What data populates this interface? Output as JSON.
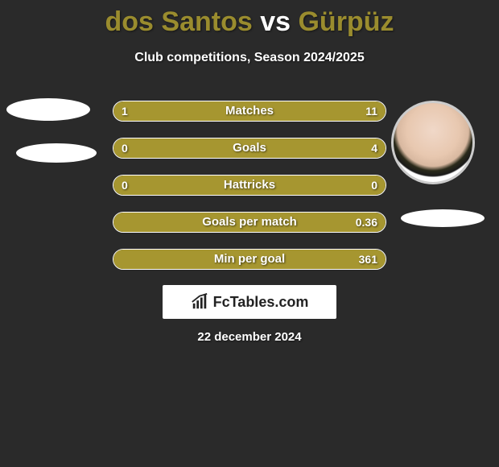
{
  "header": {
    "title_player1": "dos Santos",
    "title_vs": " vs ",
    "title_player2": "Gürpüz",
    "title_color_p1": "#9a8c2e",
    "title_color_vs": "#ffffff",
    "title_color_p2": "#9a8c2e",
    "subtitle": "Club competitions, Season 2024/2025"
  },
  "colors": {
    "player1": "#a69630",
    "player2": "#a69630",
    "background": "#2a2a2a",
    "border": "#ffffff",
    "text": "#ffffff"
  },
  "stats": [
    {
      "label": "Matches",
      "val1": "1",
      "val2": "11",
      "fill1_pct": 8,
      "fill2_pct": 92
    },
    {
      "label": "Goals",
      "val1": "0",
      "val2": "4",
      "fill1_pct": 0,
      "fill2_pct": 100
    },
    {
      "label": "Hattricks",
      "val1": "0",
      "val2": "0",
      "fill1_pct": 50,
      "fill2_pct": 50
    },
    {
      "label": "Goals per match",
      "val1": "",
      "val2": "0.36",
      "fill1_pct": 0,
      "fill2_pct": 100
    },
    {
      "label": "Min per goal",
      "val1": "",
      "val2": "361",
      "fill1_pct": 0,
      "fill2_pct": 100
    }
  ],
  "watermark": {
    "text": "FcTables.com"
  },
  "date": "22 december 2024"
}
